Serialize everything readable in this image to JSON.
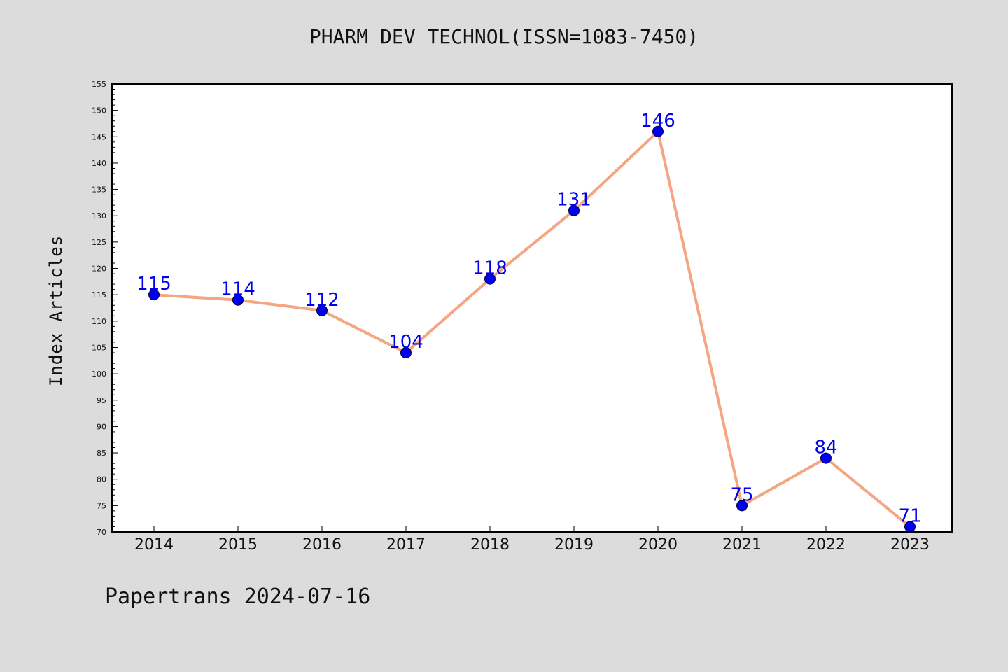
{
  "chart_data": {
    "type": "line",
    "title": "PHARM DEV TECHNOL(ISSN=1083-7450)",
    "ylabel": "Index Articles",
    "xlabel": "",
    "categories": [
      "2014",
      "2015",
      "2016",
      "2017",
      "2018",
      "2019",
      "2020",
      "2021",
      "2022",
      "2023"
    ],
    "series": [
      {
        "values": [
          115,
          114,
          112,
          104,
          118,
          131,
          146,
          75,
          84,
          71
        ]
      }
    ],
    "ylim": [
      70,
      155
    ],
    "yticks": [
      70,
      75,
      80,
      85,
      90,
      95,
      100,
      105,
      110,
      115,
      120,
      125,
      130,
      135,
      140,
      145,
      150,
      155
    ],
    "grid": false,
    "data_labels": true,
    "line_color": "#f4a582",
    "marker_color": "#0000ee",
    "label_color": "#0000ee"
  },
  "footer": {
    "credit": "Papertrans 2024-07-16"
  }
}
